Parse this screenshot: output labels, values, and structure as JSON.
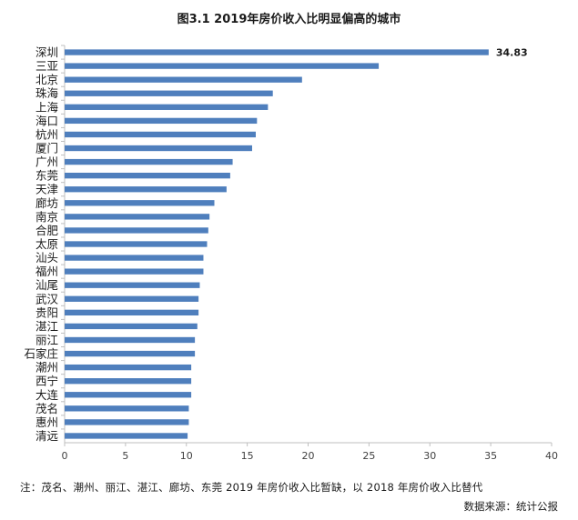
{
  "chart_data": {
    "type": "bar",
    "orientation": "horizontal",
    "title": "图3.1 2019年房价收入比明显偏高的城市",
    "categories": [
      "深圳",
      "三亚",
      "北京",
      "珠海",
      "上海",
      "海口",
      "杭州",
      "厦门",
      "广州",
      "东莞",
      "天津",
      "廊坊",
      "南京",
      "合肥",
      "太原",
      "汕头",
      "福州",
      "汕尾",
      "武汉",
      "贵阳",
      "湛江",
      "丽江",
      "石家庄",
      "潮州",
      "西宁",
      "大连",
      "茂名",
      "惠州",
      "清远"
    ],
    "values": [
      34.83,
      25.8,
      19.5,
      17.1,
      16.7,
      15.8,
      15.7,
      15.4,
      13.8,
      13.6,
      13.3,
      12.3,
      11.9,
      11.8,
      11.7,
      11.4,
      11.4,
      11.1,
      11.0,
      11.0,
      10.9,
      10.7,
      10.7,
      10.4,
      10.4,
      10.4,
      10.2,
      10.2,
      10.1
    ],
    "data_labels": [
      {
        "category": "深圳",
        "text": "34.83"
      }
    ],
    "xlim": [
      0,
      40
    ],
    "xticks": [
      0,
      5,
      10,
      15,
      20,
      25,
      30,
      35,
      40
    ],
    "xlabel": "",
    "ylabel": "",
    "grid": false,
    "legend": "none",
    "bar_color": "#4f7fbd"
  },
  "note": "注：茂名、潮州、丽江、湛江、廊坊、东莞 2019 年房价收入比暂缺，以 2018 年房价收入比替代",
  "source": "数据来源：统计公报"
}
